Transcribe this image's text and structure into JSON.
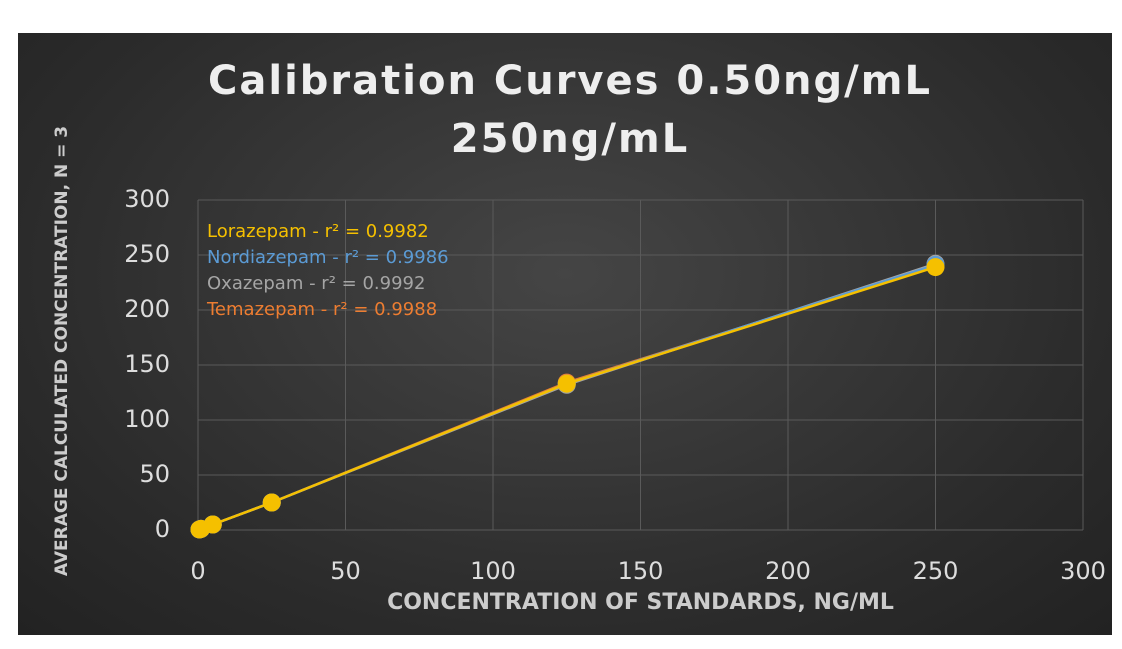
{
  "chart_data": {
    "type": "line",
    "title": "Calibration Curves 0.50ng/mL 250ng/mL",
    "x_label": "CONCENTRATION OF STANDARDS, NG/ML",
    "y_label": "AVERAGE CALCULATED CONCENTRATION, N = 3",
    "x": [
      0.5,
      1,
      5,
      25,
      125,
      250
    ],
    "series": [
      {
        "name": "Lorazepam - r² = 0.9982",
        "color": "#f5c000",
        "values": [
          0.5,
          1,
          5,
          25,
          133,
          239
        ]
      },
      {
        "name": "Nordiazepam - r² = 0.9986",
        "color": "#5b9bd5",
        "values": [
          0.5,
          1,
          5,
          25,
          133,
          241
        ]
      },
      {
        "name": "Oxazepam - r² = 0.9992",
        "color": "#a5a5a5",
        "values": [
          0.5,
          1,
          5,
          25,
          132,
          242
        ]
      },
      {
        "name": "Temazepam - r² = 0.9988",
        "color": "#ed7d31",
        "values": [
          0.5,
          1,
          5,
          25,
          134,
          240
        ]
      }
    ],
    "xlim": [
      0,
      300
    ],
    "xticks": [
      0,
      50,
      100,
      150,
      200,
      250,
      300
    ],
    "ylim": [
      0,
      300
    ],
    "yticks": [
      0,
      50,
      100,
      150,
      200,
      250,
      300
    ],
    "grid": true,
    "legend": "top-left"
  }
}
